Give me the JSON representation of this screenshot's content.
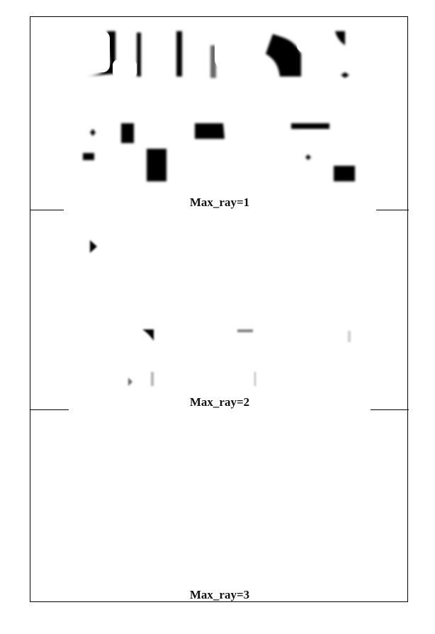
{
  "panels": [
    {
      "caption": "Max_ray=1"
    },
    {
      "caption": "Max_ray=2"
    },
    {
      "caption": "Max_ray=3"
    }
  ],
  "colors": {
    "ink": "#000000",
    "blur": "#8a8a8a",
    "paper": "#ffffff"
  }
}
